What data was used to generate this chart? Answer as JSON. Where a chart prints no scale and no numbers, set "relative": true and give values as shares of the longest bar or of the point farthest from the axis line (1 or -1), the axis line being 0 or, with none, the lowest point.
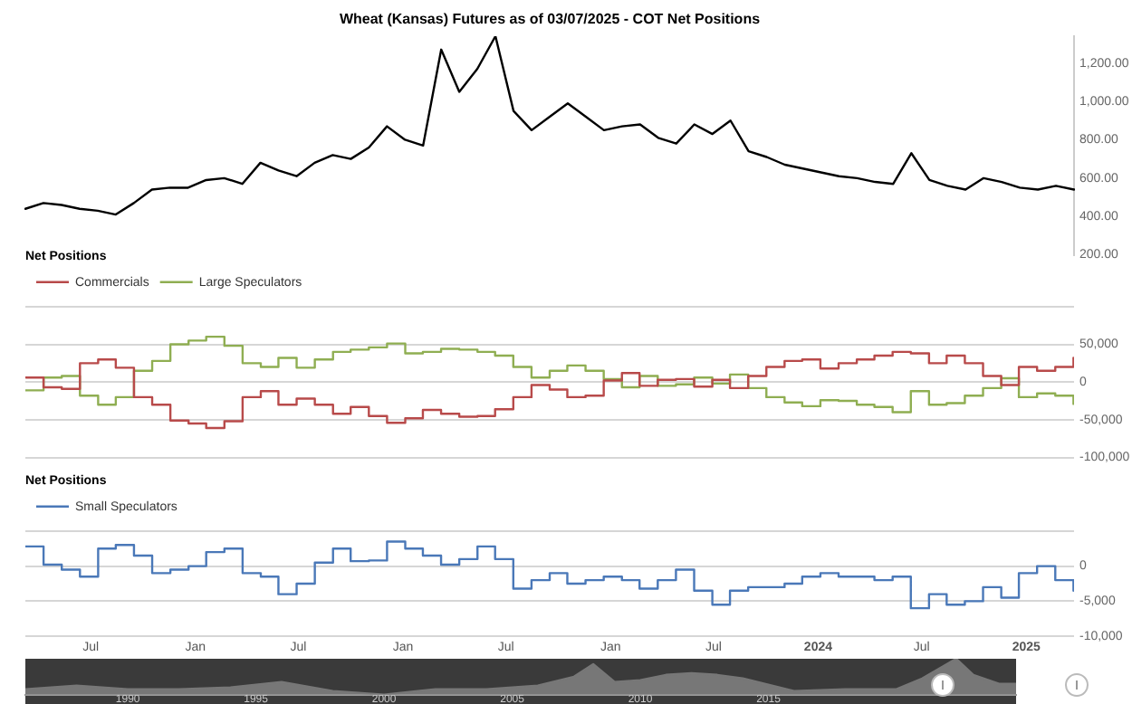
{
  "chart_data": [
    {
      "type": "line",
      "title": "Wheat (Kansas) Futures as of 03/07/2025 - COT Net Positions",
      "color": "#000000",
      "tick_labels": "y",
      "grid": false,
      "ylim": [
        200,
        1340
      ],
      "categories": [
        null,
        null,
        null,
        null,
        null,
        null,
        null,
        null,
        null,
        null,
        null,
        null,
        null,
        null,
        null,
        null,
        null,
        null,
        null,
        null,
        null,
        null,
        null,
        null,
        null,
        null,
        null,
        null,
        null,
        null,
        null,
        null,
        null,
        null,
        null,
        null,
        null,
        null,
        null,
        null,
        null,
        null,
        null,
        null,
        null,
        null,
        null,
        null,
        null,
        null,
        null,
        null,
        null,
        null,
        null,
        null,
        null,
        null,
        null
      ],
      "values": [
        440,
        470,
        460,
        440,
        430,
        410,
        470,
        540,
        550,
        550,
        590,
        600,
        570,
        680,
        640,
        610,
        680,
        720,
        700,
        760,
        870,
        800,
        770,
        1270,
        1050,
        1170,
        1340,
        950,
        850,
        920,
        990,
        920,
        850,
        870,
        880,
        810,
        780,
        880,
        830,
        900,
        740,
        710,
        670,
        650,
        630,
        610,
        600,
        580,
        570,
        730,
        590,
        560,
        540,
        600,
        580,
        550,
        540,
        560,
        540
      ],
      "yticks": [
        {
          "value": 200,
          "label": "200.00"
        },
        {
          "value": 400,
          "label": "400.00"
        },
        {
          "value": 600,
          "label": "600.00"
        },
        {
          "value": 800,
          "label": "800.00"
        },
        {
          "value": 1000,
          "label": "1,000.00"
        },
        {
          "value": 1200,
          "label": "1,200.00"
        }
      ]
    },
    {
      "type": "step",
      "legend": "top left",
      "legend_title": "Net Positions",
      "tick_labels": "y",
      "grid": "y",
      "x": [
        "2020-03-09",
        "2020-04-09",
        "2020-05-11",
        "2020-06-12",
        "2020-07-14",
        "2020-08-14",
        "2020-09-15",
        "2020-10-17",
        "2020-11-18",
        "2020-12-20",
        "2021-01-20",
        "2021-02-21",
        "2021-03-25",
        "2021-04-26",
        "2021-05-27",
        "2021-06-28",
        "2021-07-30",
        "2021-08-31",
        "2021-10-01",
        "2021-11-02",
        "2021-12-04",
        "2022-01-05",
        "2022-02-05",
        "2022-03-09",
        "2022-04-10",
        "2022-05-12",
        "2022-06-12",
        "2022-07-14",
        "2022-08-15",
        "2022-09-16",
        "2022-10-17",
        "2022-11-18",
        "2022-12-20",
        "2023-01-21",
        "2023-02-21",
        "2023-03-25",
        "2023-04-26",
        "2023-05-28",
        "2023-06-29",
        "2023-07-30",
        "2023-08-31",
        "2023-10-02",
        "2023-11-03",
        "2023-12-04",
        "2024-01-05",
        "2024-02-06",
        "2024-03-09",
        "2024-04-09",
        "2024-05-11",
        "2024-06-12",
        "2024-07-14",
        "2024-08-14",
        "2024-09-15",
        "2024-10-17",
        "2024-11-18",
        "2024-12-19",
        "2025-01-20",
        "2025-02-21",
        "2025-03-25"
      ],
      "series": [
        {
          "name": "Commercials",
          "color": "#b84a4a",
          "values": [
            6000,
            -7000,
            -9000,
            25000,
            30000,
            19000,
            -20000,
            -30000,
            -51000,
            -55000,
            -61000,
            -52000,
            -20000,
            -12000,
            -30000,
            -22000,
            -30000,
            -42000,
            -33000,
            -45000,
            -54000,
            -48000,
            -37000,
            -42000,
            -46000,
            -45000,
            -36000,
            -20000,
            -4000,
            -10000,
            -20000,
            -18000,
            2000,
            12000,
            -5000,
            3000,
            4000,
            -6000,
            3000,
            -8000,
            8000,
            20000,
            28000,
            30000,
            18000,
            25000,
            30000,
            35000,
            40000,
            38000,
            25000,
            35000,
            25000,
            8000,
            -4000,
            20000,
            15000,
            20000,
            32000
          ]
        },
        {
          "name": "Large Speculators",
          "color": "#8fae52",
          "values": [
            -11000,
            6000,
            8000,
            -18000,
            -30000,
            -20000,
            15000,
            28000,
            50000,
            55000,
            60000,
            48000,
            25000,
            20000,
            32000,
            19000,
            30000,
            40000,
            43000,
            46000,
            51000,
            38000,
            40000,
            44000,
            43000,
            40000,
            35000,
            20000,
            6000,
            15000,
            22000,
            15000,
            4000,
            -7000,
            8000,
            -5000,
            -3000,
            6000,
            -2000,
            10000,
            -8000,
            -20000,
            -27000,
            -32000,
            -24000,
            -25000,
            -30000,
            -33000,
            -40000,
            -12000,
            -30000,
            -28000,
            -18000,
            -8000,
            5000,
            -20000,
            -15000,
            -18000,
            -29000
          ]
        }
      ],
      "xlim": [
        "2020-03-08",
        "2025-03-26"
      ],
      "ylim": [
        -100000,
        100000
      ],
      "yticks": [
        {
          "value": -100000,
          "label": "-100,000"
        },
        {
          "value": -50000,
          "label": "-50,000"
        },
        0,
        {
          "value": 50000,
          "label": "50,000"
        },
        {
          "value": 100000,
          "label": null
        }
      ]
    },
    {
      "type": "step",
      "legend": "top left",
      "legend_title": "Net Positions",
      "grid": "y",
      "x": [
        "2020-03-09",
        "2020-04-09",
        "2020-05-11",
        "2020-06-12",
        "2020-07-14",
        "2020-08-14",
        "2020-09-15",
        "2020-10-17",
        "2020-11-18",
        "2020-12-20",
        "2021-01-20",
        "2021-02-21",
        "2021-03-25",
        "2021-04-26",
        "2021-05-27",
        "2021-06-28",
        "2021-07-30",
        "2021-08-31",
        "2021-10-01",
        "2021-11-02",
        "2021-12-04",
        "2022-01-05",
        "2022-02-05",
        "2022-03-09",
        "2022-04-10",
        "2022-05-12",
        "2022-06-12",
        "2022-07-14",
        "2022-08-15",
        "2022-09-16",
        "2022-10-17",
        "2022-11-18",
        "2022-12-20",
        "2023-01-21",
        "2023-02-21",
        "2023-03-25",
        "2023-04-26",
        "2023-05-28",
        "2023-06-29",
        "2023-07-30",
        "2023-08-31",
        "2023-10-02",
        "2023-11-03",
        "2023-12-04",
        "2024-01-05",
        "2024-02-06",
        "2024-03-09",
        "2024-04-09",
        "2024-05-11",
        "2024-06-12",
        "2024-07-14",
        "2024-08-14",
        "2024-09-15",
        "2024-10-17",
        "2024-11-18",
        "2024-12-19",
        "2025-01-20",
        "2025-02-21",
        "2025-03-25"
      ],
      "series": [
        {
          "name": "Small Speculators",
          "color": "#4a78b8",
          "values": [
            2800,
            200,
            -500,
            -1500,
            2500,
            3000,
            1500,
            -1000,
            -500,
            0,
            2000,
            2500,
            -1000,
            -1500,
            -4000,
            -2500,
            500,
            2500,
            700,
            800,
            3500,
            2500,
            1500,
            200,
            1000,
            2800,
            1000,
            -3200,
            -2000,
            -1000,
            -2500,
            -2000,
            -1500,
            -2000,
            -3200,
            -2000,
            -500,
            -3500,
            -5500,
            -3500,
            -3000,
            -3000,
            -2500,
            -1500,
            -1000,
            -1500,
            -1500,
            -2000,
            -1500,
            -6000,
            -4000,
            -5500,
            -5000,
            -3000,
            -4500,
            -1000,
            0,
            -2000,
            -3500
          ]
        }
      ],
      "xlim": [
        "2020-03-08",
        "2025-03-26"
      ],
      "ylim": [
        -10000,
        5000
      ],
      "yticks": [
        {
          "value": -10000,
          "label": "-10,000"
        },
        {
          "value": -5000,
          "label": "-5,000"
        },
        0,
        {
          "value": 5000,
          "label": null
        }
      ],
      "xticks": [
        {
          "value": "2020-07-01",
          "label": "Jul"
        },
        {
          "value": "2021-01-01",
          "label": "Jan"
        },
        {
          "value": "2021-07-01",
          "label": "Jul"
        },
        {
          "value": "2022-01-01",
          "label": "Jan"
        },
        {
          "value": "2022-07-01",
          "label": "Jul"
        },
        {
          "value": "2023-01-01",
          "label": "Jan"
        },
        {
          "value": "2023-07-01",
          "label": "Jul"
        },
        "2024",
        {
          "value": "2024-07-01",
          "label": "Jul"
        },
        "2025"
      ]
    },
    {
      "type": "area",
      "relative": true,
      "color": "#777777",
      "tick_labels": "x",
      "x": [
        "1986",
        "1988",
        "1990",
        "1992",
        "1994",
        "1996",
        "1998",
        "2000",
        "2002",
        "2004",
        "2006",
        "2007-06",
        "2008-03",
        "2009",
        "2010",
        "2011",
        "2012",
        "2013",
        "2014",
        "2016",
        "2018",
        "2020",
        "2021",
        "2022-05",
        "2023",
        "2024",
        "2024-09"
      ],
      "values": [
        0.15,
        0.25,
        0.15,
        0.15,
        0.2,
        0.35,
        0.1,
        0,
        0.15,
        0.15,
        0.25,
        0.5,
        0.85,
        0.35,
        0.4,
        0.55,
        0.6,
        0.55,
        0.45,
        0.1,
        0.15,
        0.15,
        0.45,
        1,
        0.55,
        0.3,
        0.3
      ],
      "xlim": [
        "1986",
        "2024-09"
      ],
      "xticks": [
        "1990",
        "1995",
        "2000",
        "2005",
        "2010",
        "2015"
      ]
    }
  ]
}
